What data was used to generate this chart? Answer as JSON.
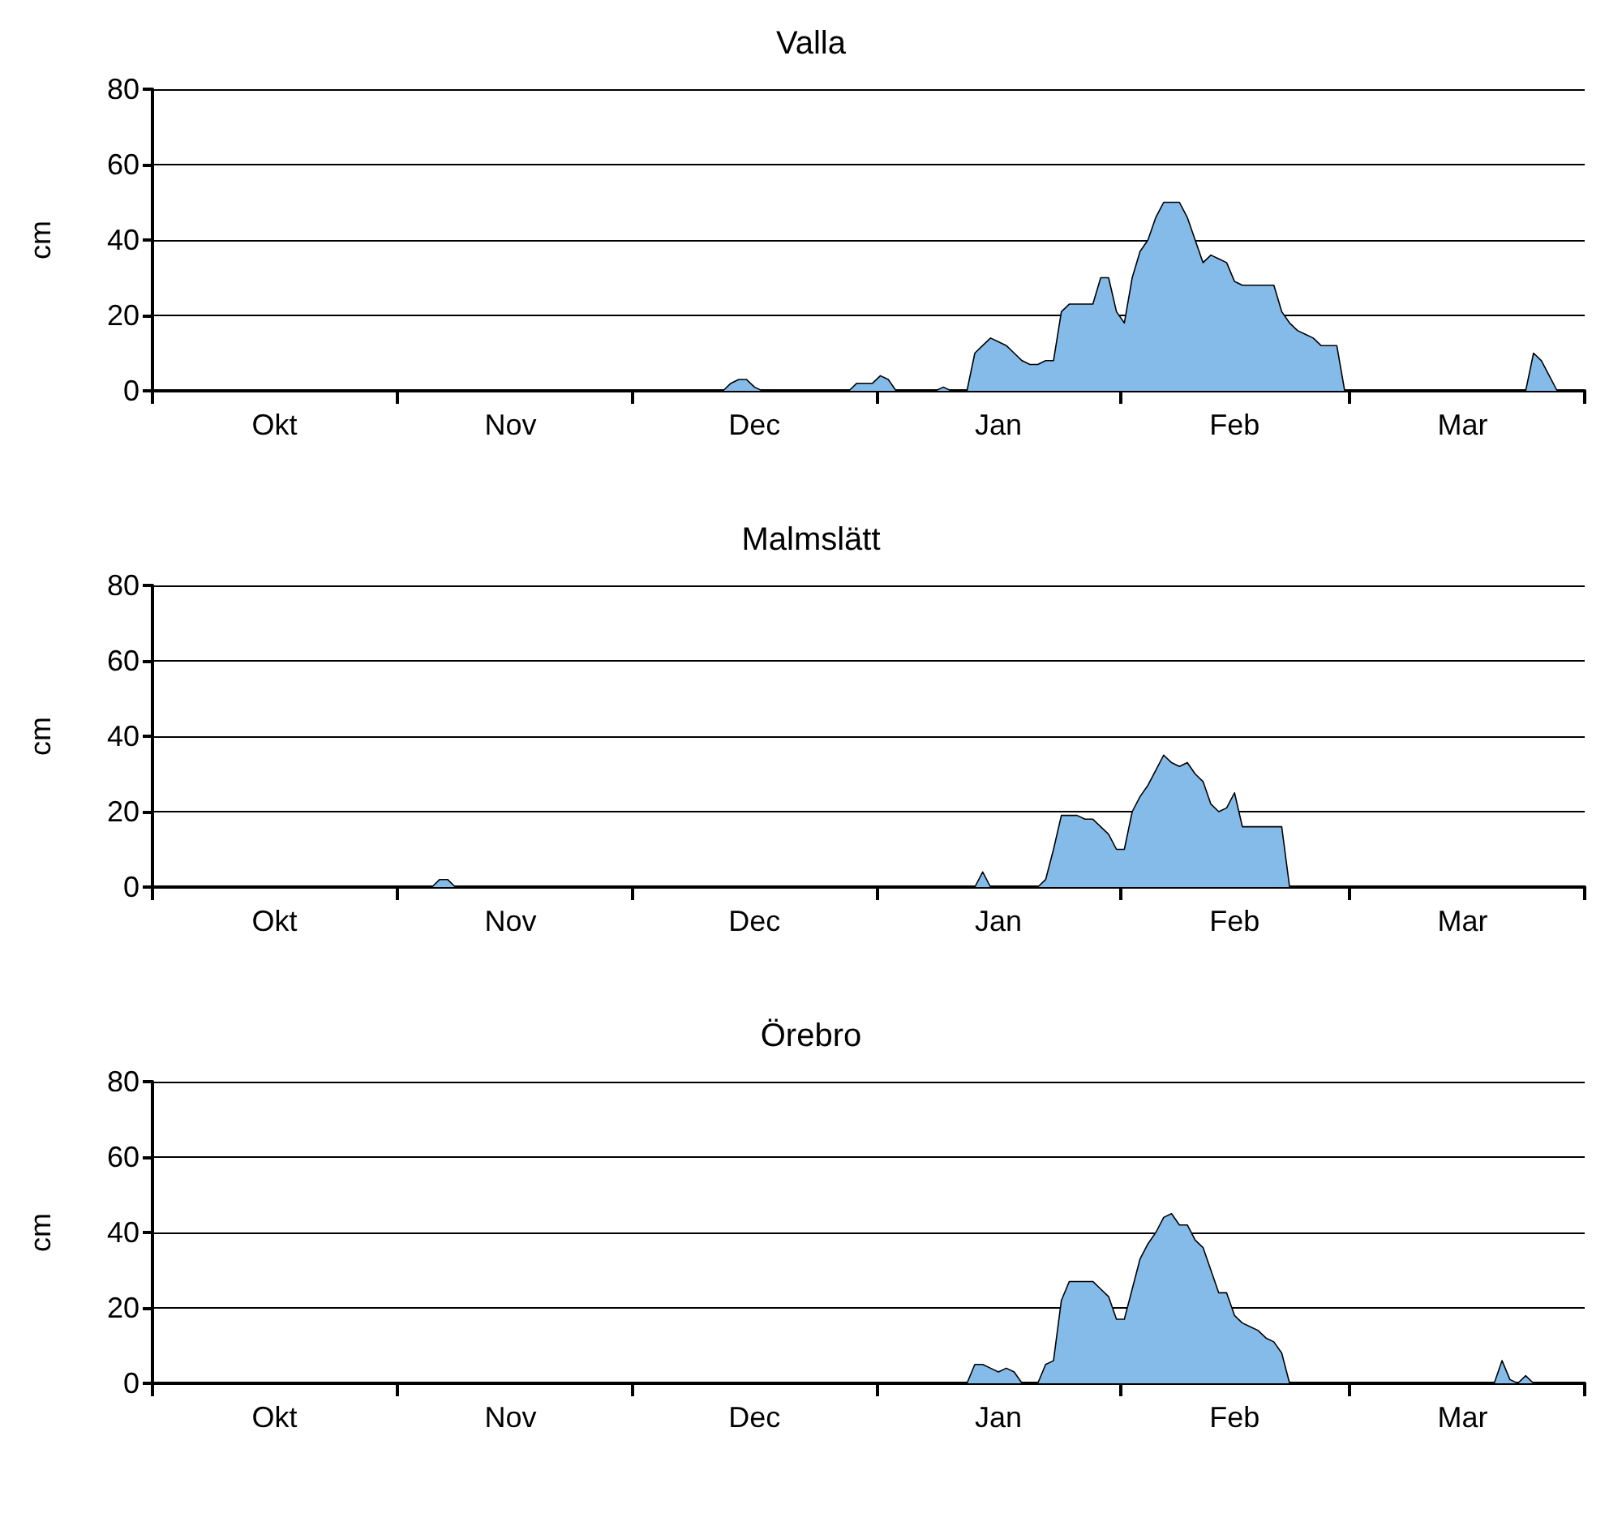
{
  "chart_data": [
    {
      "type": "area",
      "title": "Valla",
      "ylabel": "cm",
      "ylim": [
        0,
        80
      ],
      "yticks": [
        0,
        20,
        40,
        60,
        80
      ],
      "grid": "y",
      "marker": "none",
      "categories": [
        null,
        null,
        null,
        null,
        null,
        null,
        null,
        null,
        null,
        null,
        null,
        null,
        null,
        null,
        null,
        "Okt",
        null,
        null,
        null,
        null,
        null,
        null,
        null,
        null,
        null,
        null,
        null,
        null,
        null,
        null,
        null,
        null,
        null,
        null,
        null,
        null,
        null,
        null,
        null,
        null,
        null,
        null,
        null,
        null,
        null,
        "Nov",
        null,
        null,
        null,
        null,
        null,
        null,
        null,
        null,
        null,
        null,
        null,
        null,
        null,
        null,
        null,
        null,
        null,
        null,
        null,
        null,
        null,
        null,
        null,
        null,
        null,
        null,
        null,
        null,
        null,
        null,
        "Dec",
        null,
        null,
        null,
        null,
        null,
        null,
        null,
        null,
        null,
        null,
        null,
        null,
        null,
        null,
        null,
        null,
        null,
        null,
        null,
        null,
        null,
        null,
        null,
        null,
        null,
        null,
        null,
        null,
        null,
        null,
        "Jan",
        null,
        null,
        null,
        null,
        null,
        null,
        null,
        null,
        null,
        null,
        null,
        null,
        null,
        null,
        null,
        null,
        null,
        null,
        null,
        null,
        null,
        null,
        null,
        null,
        null,
        null,
        null,
        null,
        null,
        "Feb",
        null,
        null,
        null,
        null,
        null,
        null,
        null,
        null,
        null,
        null,
        null,
        null,
        null,
        null,
        null,
        null,
        null,
        null,
        null,
        null,
        null,
        null,
        null,
        null,
        null,
        null,
        null,
        null,
        "Mar",
        null,
        null,
        null,
        null,
        null,
        null,
        null,
        null,
        null,
        null,
        null,
        null,
        null,
        null,
        null
      ],
      "series": [
        {
          "color": "#85bbe8",
          "values": [
            0,
            0,
            0,
            0,
            0,
            0,
            0,
            0,
            0,
            0,
            0,
            0,
            0,
            0,
            0,
            0,
            0,
            0,
            0,
            0,
            0,
            0,
            0,
            0,
            0,
            0,
            0,
            0,
            0,
            0,
            0,
            0,
            0,
            0,
            0,
            0,
            0,
            0,
            0,
            0,
            0,
            0,
            0,
            0,
            0,
            0,
            0,
            0,
            0,
            0,
            0,
            0,
            0,
            0,
            0,
            0,
            0,
            0,
            0,
            0,
            0,
            0,
            0,
            0,
            0,
            0,
            0,
            0,
            0,
            0,
            0,
            0,
            0,
            2,
            3,
            3,
            1,
            0,
            0,
            0,
            0,
            0,
            0,
            0,
            0,
            0,
            0,
            0,
            0,
            2,
            2,
            2,
            4,
            3,
            0,
            0,
            0,
            0,
            0,
            0,
            1,
            0,
            0,
            0,
            10,
            12,
            14,
            13,
            12,
            10,
            8,
            7,
            7,
            8,
            8,
            21,
            23,
            23,
            23,
            23,
            30,
            30,
            21,
            18,
            30,
            37,
            40,
            46,
            50,
            50,
            50,
            46,
            40,
            34,
            36,
            35,
            34,
            29,
            28,
            28,
            28,
            28,
            28,
            21,
            18,
            16,
            15,
            14,
            12,
            12,
            12,
            0,
            0,
            0,
            0,
            0,
            0,
            0,
            0,
            0,
            0,
            0,
            0,
            0,
            0,
            0,
            0,
            0,
            0,
            0,
            0,
            0,
            0,
            0,
            0,
            10,
            8,
            4,
            0,
            0,
            0,
            0
          ]
        }
      ]
    },
    {
      "type": "area",
      "title": "Malmslätt",
      "ylabel": "cm",
      "ylim": [
        0,
        80
      ],
      "yticks": [
        0,
        20,
        40,
        60,
        80
      ],
      "grid": "y",
      "marker": "none",
      "categories": [
        null,
        null,
        null,
        null,
        null,
        null,
        null,
        null,
        null,
        null,
        null,
        null,
        null,
        null,
        null,
        "Okt",
        null,
        null,
        null,
        null,
        null,
        null,
        null,
        null,
        null,
        null,
        null,
        null,
        null,
        null,
        null,
        null,
        null,
        null,
        null,
        null,
        null,
        null,
        null,
        null,
        null,
        null,
        null,
        null,
        null,
        "Nov",
        null,
        null,
        null,
        null,
        null,
        null,
        null,
        null,
        null,
        null,
        null,
        null,
        null,
        null,
        null,
        null,
        null,
        null,
        null,
        null,
        null,
        null,
        null,
        null,
        null,
        null,
        null,
        null,
        null,
        null,
        "Dec",
        null,
        null,
        null,
        null,
        null,
        null,
        null,
        null,
        null,
        null,
        null,
        null,
        null,
        null,
        null,
        null,
        null,
        null,
        null,
        null,
        null,
        null,
        null,
        null,
        null,
        null,
        null,
        null,
        null,
        null,
        "Jan",
        null,
        null,
        null,
        null,
        null,
        null,
        null,
        null,
        null,
        null,
        null,
        null,
        null,
        null,
        null,
        null,
        null,
        null,
        null,
        null,
        null,
        null,
        null,
        null,
        null,
        null,
        null,
        null,
        null,
        "Feb",
        null,
        null,
        null,
        null,
        null,
        null,
        null,
        null,
        null,
        null,
        null,
        null,
        null,
        null,
        null,
        null,
        null,
        null,
        null,
        null,
        null,
        null,
        null,
        null,
        null,
        null,
        null,
        null,
        "Mar",
        null,
        null,
        null,
        null,
        null,
        null,
        null,
        null,
        null,
        null,
        null,
        null,
        null,
        null,
        null
      ],
      "series": [
        {
          "color": "#85bbe8",
          "values": [
            0,
            0,
            0,
            0,
            0,
            0,
            0,
            0,
            0,
            0,
            0,
            0,
            0,
            0,
            0,
            0,
            0,
            0,
            0,
            0,
            0,
            0,
            0,
            0,
            0,
            0,
            0,
            0,
            0,
            0,
            0,
            0,
            0,
            0,
            0,
            0,
            2,
            2,
            0,
            0,
            0,
            0,
            0,
            0,
            0,
            0,
            0,
            0,
            0,
            0,
            0,
            0,
            0,
            0,
            0,
            0,
            0,
            0,
            0,
            0,
            0,
            0,
            0,
            0,
            0,
            0,
            0,
            0,
            0,
            0,
            0,
            0,
            0,
            0,
            0,
            0,
            0,
            0,
            0,
            0,
            0,
            0,
            0,
            0,
            0,
            0,
            0,
            0,
            0,
            0,
            0,
            0,
            0,
            0,
            0,
            0,
            0,
            0,
            0,
            0,
            0,
            0,
            0,
            0,
            0,
            4,
            0,
            0,
            0,
            0,
            0,
            0,
            0,
            2,
            10,
            19,
            19,
            19,
            18,
            18,
            16,
            14,
            10,
            10,
            20,
            24,
            27,
            31,
            35,
            33,
            32,
            33,
            30,
            28,
            22,
            20,
            21,
            25,
            16,
            16,
            16,
            16,
            16,
            16,
            0,
            0,
            0,
            0,
            0,
            0,
            0,
            0,
            0,
            0,
            0,
            0,
            0,
            0,
            0,
            0,
            0,
            0,
            0,
            0,
            0,
            0,
            0,
            0,
            0,
            0,
            0,
            0,
            0,
            0,
            0,
            0,
            0,
            0,
            0,
            0,
            0,
            0
          ]
        }
      ]
    },
    {
      "type": "area",
      "title": "Örebro",
      "ylabel": "cm",
      "ylim": [
        0,
        80
      ],
      "yticks": [
        0,
        20,
        40,
        60,
        80
      ],
      "grid": "y",
      "marker": "none",
      "categories": [
        null,
        null,
        null,
        null,
        null,
        null,
        null,
        null,
        null,
        null,
        null,
        null,
        null,
        null,
        null,
        "Okt",
        null,
        null,
        null,
        null,
        null,
        null,
        null,
        null,
        null,
        null,
        null,
        null,
        null,
        null,
        null,
        null,
        null,
        null,
        null,
        null,
        null,
        null,
        null,
        null,
        null,
        null,
        null,
        null,
        null,
        "Nov",
        null,
        null,
        null,
        null,
        null,
        null,
        null,
        null,
        null,
        null,
        null,
        null,
        null,
        null,
        null,
        null,
        null,
        null,
        null,
        null,
        null,
        null,
        null,
        null,
        null,
        null,
        null,
        null,
        null,
        null,
        "Dec",
        null,
        null,
        null,
        null,
        null,
        null,
        null,
        null,
        null,
        null,
        null,
        null,
        null,
        null,
        null,
        null,
        null,
        null,
        null,
        null,
        null,
        null,
        null,
        null,
        null,
        null,
        null,
        null,
        null,
        null,
        "Jan",
        null,
        null,
        null,
        null,
        null,
        null,
        null,
        null,
        null,
        null,
        null,
        null,
        null,
        null,
        null,
        null,
        null,
        null,
        null,
        null,
        null,
        null,
        null,
        null,
        null,
        null,
        null,
        null,
        null,
        "Feb",
        null,
        null,
        null,
        null,
        null,
        null,
        null,
        null,
        null,
        null,
        null,
        null,
        null,
        null,
        null,
        null,
        null,
        null,
        null,
        null,
        null,
        null,
        null,
        null,
        null,
        null,
        null,
        null,
        "Mar",
        null,
        null,
        null,
        null,
        null,
        null,
        null,
        null,
        null,
        null,
        null,
        null,
        null,
        null,
        null
      ],
      "series": [
        {
          "color": "#85bbe8",
          "values": [
            0,
            0,
            0,
            0,
            0,
            0,
            0,
            0,
            0,
            0,
            0,
            0,
            0,
            0,
            0,
            0,
            0,
            0,
            0,
            0,
            0,
            0,
            0,
            0,
            0,
            0,
            0,
            0,
            0,
            0,
            0,
            0,
            0,
            0,
            0,
            0,
            0,
            0,
            0,
            0,
            0,
            0,
            0,
            0,
            0,
            0,
            0,
            0,
            0,
            0,
            0,
            0,
            0,
            0,
            0,
            0,
            0,
            0,
            0,
            0,
            0,
            0,
            0,
            0,
            0,
            0,
            0,
            0,
            0,
            0,
            0,
            0,
            0,
            0,
            0,
            0,
            0,
            0,
            0,
            0,
            0,
            0,
            0,
            0,
            0,
            0,
            0,
            0,
            0,
            0,
            0,
            0,
            0,
            0,
            0,
            0,
            0,
            0,
            0,
            0,
            0,
            0,
            0,
            0,
            5,
            5,
            4,
            3,
            4,
            3,
            0,
            0,
            0,
            5,
            6,
            22,
            27,
            27,
            27,
            27,
            25,
            23,
            17,
            17,
            25,
            33,
            37,
            40,
            44,
            45,
            42,
            42,
            38,
            36,
            30,
            24,
            24,
            18,
            16,
            15,
            14,
            12,
            11,
            8,
            0,
            0,
            0,
            0,
            0,
            0,
            0,
            0,
            0,
            0,
            0,
            0,
            0,
            0,
            0,
            0,
            0,
            0,
            0,
            0,
            0,
            0,
            0,
            0,
            0,
            0,
            0,
            6,
            1,
            0,
            2,
            0,
            0,
            0,
            0,
            0,
            0,
            0
          ]
        }
      ]
    }
  ]
}
